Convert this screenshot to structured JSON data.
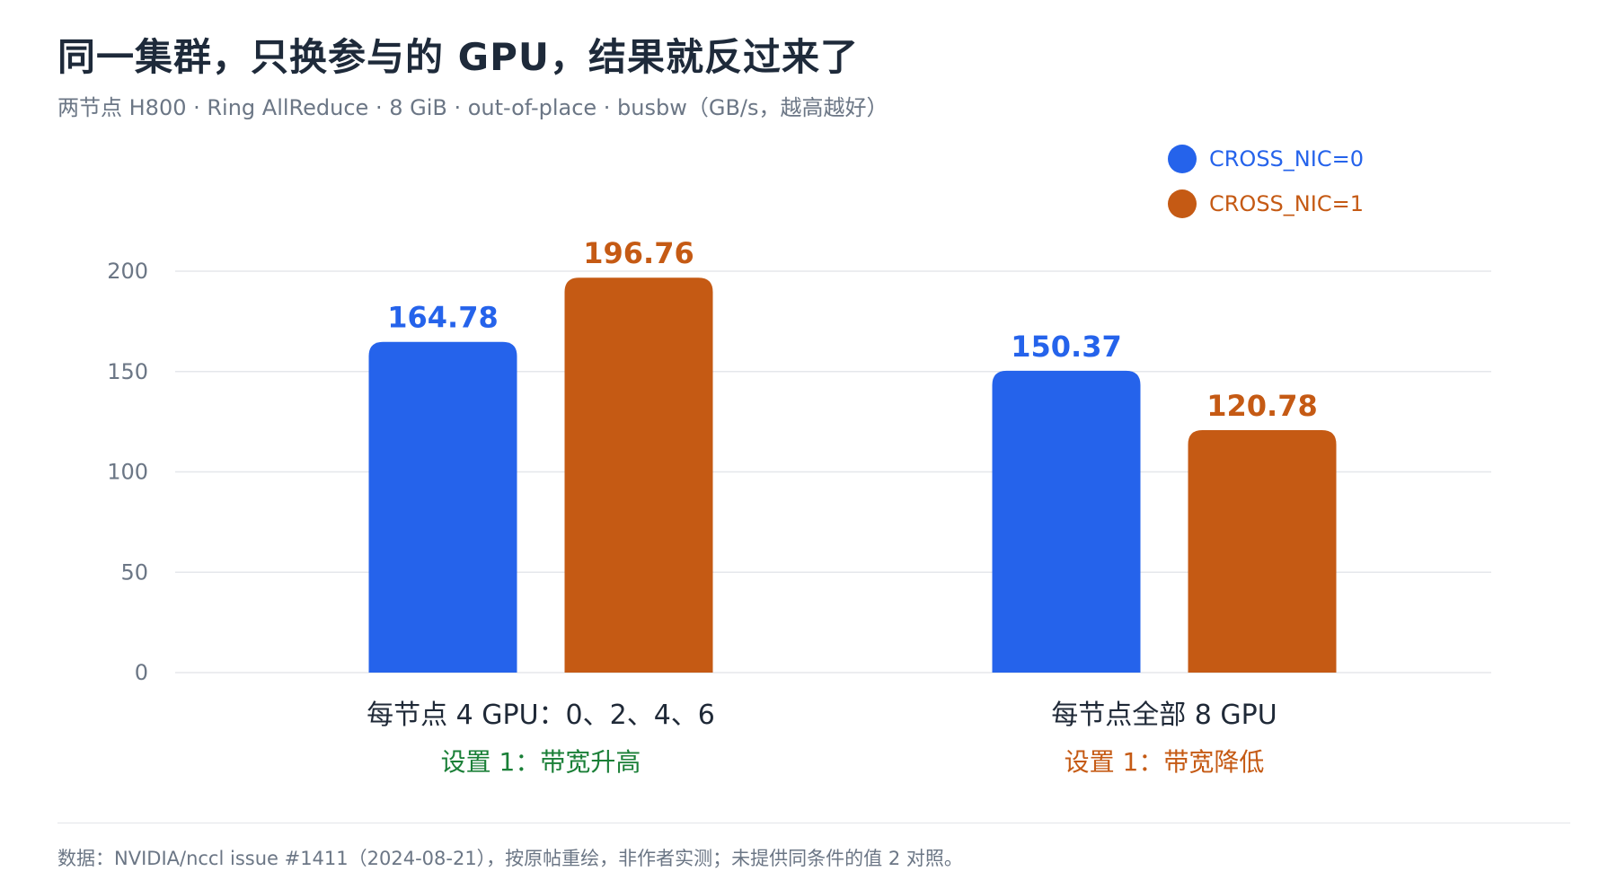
{
  "title": "同一集群，只换参与的 GPU，结果就反过来了",
  "subtitle": "两节点 H800 · Ring AllReduce · 8 GiB · out-of-place · busbw（GB/s，越高越好）",
  "colors": {
    "series0": "#2563eb",
    "series1": "#c55a14",
    "up": "#1a7f37",
    "down": "#c55a14",
    "grid": "#e5e7eb",
    "tick": "#6b7685"
  },
  "chart_data": {
    "type": "bar",
    "ylim": [
      0,
      200
    ],
    "yticks": [
      "0",
      "50",
      "100",
      "150",
      "200"
    ],
    "grid": true,
    "legend_position": "top-right",
    "categories": [
      "每节点 4 GPU：0、2、4、6",
      "每节点全部 8 GPU"
    ],
    "category_notes": [
      "设置 1：带宽升高",
      "设置 1：带宽降低"
    ],
    "series": [
      {
        "name": "CROSS_NIC=0",
        "values": [
          164.78,
          150.37
        ]
      },
      {
        "name": "CROSS_NIC=1",
        "values": [
          196.76,
          120.78
        ]
      }
    ],
    "value_labels": [
      [
        "164.78",
        "150.37"
      ],
      [
        "196.76",
        "120.78"
      ]
    ]
  },
  "footnote": "数据：NVIDIA/nccl issue #1411（2024-08-21），按原帖重绘，非作者实测；未提供同条件的值 2 对照。"
}
